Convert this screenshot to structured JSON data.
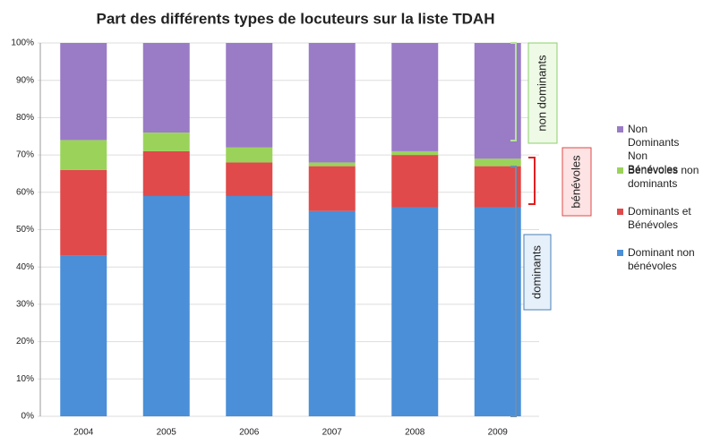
{
  "chart_data": {
    "type": "bar",
    "stacked": true,
    "title": "Part des différents types de locuteurs sur la liste TDAH",
    "categories": [
      "2004",
      "2005",
      "2006",
      "2007",
      "2008",
      "2009"
    ],
    "series": [
      {
        "name": "Dominant non bénévoles",
        "color": "#4a8fd8",
        "values": [
          43,
          59,
          59,
          55,
          56,
          56
        ]
      },
      {
        "name": "Dominants et Bénévoles",
        "color": "#e04a4a",
        "values": [
          23,
          12,
          9,
          12,
          14,
          11
        ]
      },
      {
        "name": "Bénévoles non dominants",
        "color": "#9bd35a",
        "values": [
          8,
          5,
          4,
          1,
          1,
          2
        ]
      },
      {
        "name": "Non Dominants Non Bénévoles",
        "color": "#9a7bc6",
        "values": [
          26,
          24,
          28,
          32,
          29,
          31
        ]
      }
    ],
    "ylim": [
      0,
      100
    ],
    "yticks": [
      {
        "value": 0,
        "label": "0%"
      },
      {
        "value": 10,
        "label": "10%"
      },
      {
        "value": 20,
        "label": "20%"
      },
      {
        "value": 30,
        "label": "30%"
      },
      {
        "value": 40,
        "label": "40%"
      },
      {
        "value": 50,
        "label": "50%"
      },
      {
        "value": 60,
        "label": "60%"
      },
      {
        "value": 70,
        "label": "70%"
      },
      {
        "value": 80,
        "label": "80%"
      },
      {
        "value": 90,
        "label": "90%"
      },
      {
        "value": 100,
        "label": "100%"
      }
    ],
    "grid": true,
    "legend": "right",
    "annotations": [
      "non dominants",
      "bénévoles",
      "dominants"
    ]
  }
}
